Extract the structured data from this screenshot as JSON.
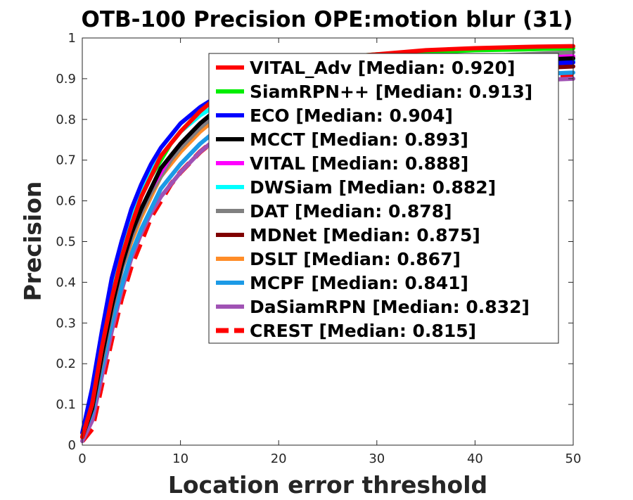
{
  "chart_data": {
    "type": "line",
    "title": "OTB-100 Precision OPE:motion blur (31)",
    "xlabel": "Location error threshold",
    "ylabel": "Precision",
    "xlim": [
      0,
      50
    ],
    "ylim": [
      0,
      1
    ],
    "xticks": [
      "0",
      "10",
      "20",
      "30",
      "40",
      "50"
    ],
    "yticks": [
      "0",
      "0.1",
      "0.2",
      "0.3",
      "0.4",
      "0.5",
      "0.6",
      "0.7",
      "0.8",
      "0.9",
      "1"
    ],
    "grid": false,
    "legend_position": "top-right",
    "x": [
      0,
      1,
      2,
      3,
      4,
      5,
      6,
      7,
      8,
      9,
      10,
      12,
      14,
      16,
      18,
      20,
      25,
      30,
      35,
      40,
      45,
      50
    ],
    "series": [
      {
        "name": "VITAL_Adv [Median: 0.920]",
        "color": "#ff0000",
        "dash": false,
        "values": [
          0.02,
          0.1,
          0.24,
          0.36,
          0.46,
          0.54,
          0.61,
          0.66,
          0.71,
          0.74,
          0.77,
          0.82,
          0.86,
          0.89,
          0.91,
          0.93,
          0.95,
          0.96,
          0.97,
          0.975,
          0.978,
          0.98
        ]
      },
      {
        "name": "SiamRPN++ [Median: 0.913]",
        "color": "#00ee00",
        "dash": false,
        "values": [
          0.02,
          0.1,
          0.24,
          0.36,
          0.46,
          0.54,
          0.61,
          0.66,
          0.7,
          0.74,
          0.77,
          0.82,
          0.86,
          0.89,
          0.91,
          0.93,
          0.95,
          0.96,
          0.965,
          0.97,
          0.972,
          0.975
        ]
      },
      {
        "name": "ECO [Median: 0.904]",
        "color": "#0000ff",
        "dash": false,
        "values": [
          0.03,
          0.14,
          0.28,
          0.41,
          0.5,
          0.58,
          0.64,
          0.69,
          0.73,
          0.76,
          0.79,
          0.83,
          0.86,
          0.88,
          0.89,
          0.9,
          0.91,
          0.92,
          0.925,
          0.93,
          0.935,
          0.94
        ]
      },
      {
        "name": "MCCT [Median: 0.893]",
        "color": "#000000",
        "dash": false,
        "values": [
          0.02,
          0.09,
          0.22,
          0.34,
          0.44,
          0.52,
          0.58,
          0.63,
          0.68,
          0.71,
          0.74,
          0.79,
          0.83,
          0.86,
          0.88,
          0.9,
          0.92,
          0.93,
          0.935,
          0.94,
          0.945,
          0.95
        ]
      },
      {
        "name": "VITAL [Median: 0.888]",
        "color": "#ff00ff",
        "dash": false,
        "values": [
          0.02,
          0.09,
          0.22,
          0.34,
          0.44,
          0.52,
          0.58,
          0.63,
          0.67,
          0.71,
          0.74,
          0.79,
          0.83,
          0.86,
          0.88,
          0.9,
          0.92,
          0.935,
          0.94,
          0.945,
          0.95,
          0.955
        ]
      },
      {
        "name": "DWSiam [Median: 0.882]",
        "color": "#00ffff",
        "dash": false,
        "values": [
          0.02,
          0.12,
          0.26,
          0.38,
          0.48,
          0.56,
          0.62,
          0.67,
          0.71,
          0.74,
          0.77,
          0.81,
          0.84,
          0.86,
          0.88,
          0.89,
          0.91,
          0.92,
          0.93,
          0.935,
          0.94,
          0.945
        ]
      },
      {
        "name": "DAT [Median: 0.878]",
        "color": "#808080",
        "dash": false,
        "values": [
          0.02,
          0.09,
          0.21,
          0.33,
          0.43,
          0.51,
          0.57,
          0.62,
          0.66,
          0.7,
          0.73,
          0.78,
          0.82,
          0.85,
          0.87,
          0.89,
          0.92,
          0.94,
          0.95,
          0.955,
          0.96,
          0.965
        ]
      },
      {
        "name": "MDNet [Median: 0.875]",
        "color": "#800000",
        "dash": false,
        "values": [
          0.02,
          0.09,
          0.21,
          0.33,
          0.43,
          0.51,
          0.57,
          0.62,
          0.66,
          0.7,
          0.73,
          0.78,
          0.82,
          0.85,
          0.87,
          0.88,
          0.9,
          0.91,
          0.915,
          0.92,
          0.925,
          0.93
        ]
      },
      {
        "name": "DSLT [Median: 0.867]",
        "color": "#ff8c28",
        "dash": false,
        "values": [
          0.02,
          0.09,
          0.21,
          0.33,
          0.43,
          0.5,
          0.56,
          0.61,
          0.66,
          0.69,
          0.72,
          0.77,
          0.81,
          0.84,
          0.86,
          0.88,
          0.91,
          0.92,
          0.93,
          0.935,
          0.94,
          0.945
        ]
      },
      {
        "name": "MCPF [Median: 0.841]",
        "color": "#1c9ae6",
        "dash": false,
        "values": [
          0.02,
          0.08,
          0.19,
          0.3,
          0.39,
          0.47,
          0.53,
          0.58,
          0.63,
          0.66,
          0.69,
          0.74,
          0.78,
          0.81,
          0.83,
          0.85,
          0.88,
          0.89,
          0.9,
          0.905,
          0.91,
          0.915
        ]
      },
      {
        "name": "DaSiamRPN [Median: 0.832]",
        "color": "#a052b4",
        "dash": false,
        "values": [
          0.01,
          0.06,
          0.17,
          0.28,
          0.38,
          0.46,
          0.52,
          0.57,
          0.61,
          0.64,
          0.67,
          0.72,
          0.76,
          0.79,
          0.81,
          0.83,
          0.86,
          0.875,
          0.88,
          0.89,
          0.895,
          0.9
        ]
      },
      {
        "name": "CREST [Median: 0.815]",
        "color": "#ff0000",
        "dash": true,
        "values": [
          0.01,
          0.04,
          0.15,
          0.26,
          0.36,
          0.44,
          0.5,
          0.56,
          0.6,
          0.64,
          0.67,
          0.72,
          0.76,
          0.79,
          0.81,
          0.83,
          0.86,
          0.88,
          0.89,
          0.9,
          0.905,
          0.91
        ]
      }
    ]
  }
}
